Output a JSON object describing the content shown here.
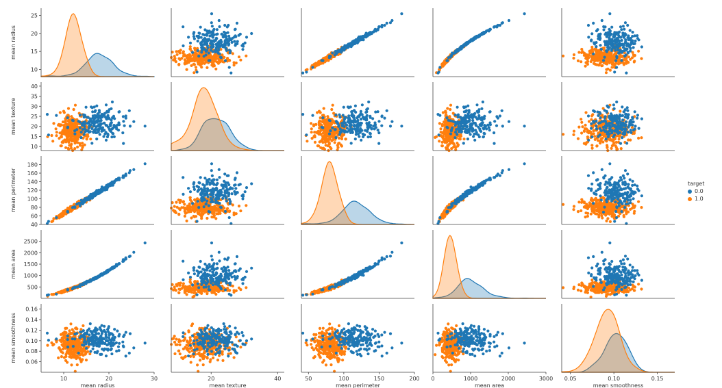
{
  "chart_data": {
    "type": "scatter",
    "kind": "pairplot",
    "hue_title": "target",
    "hue_levels": [
      "0.0",
      "1.0"
    ],
    "colors": {
      "0.0": "#1f77b4",
      "1.0": "#ff7f0e"
    },
    "variables": [
      {
        "name": "mean radius",
        "ylabel": "mean radius",
        "xlabel": "mean radius",
        "range": [
          5,
          30
        ],
        "ticks": [
          10,
          20,
          30
        ],
        "tick_labels": [
          "10",
          "20",
          "30"
        ],
        "mu": [
          17.5,
          12.1
        ],
        "sd": [
          3.2,
          1.8
        ]
      },
      {
        "name": "mean texture",
        "ylabel": "mean texture",
        "xlabel": "mean texture",
        "range": [
          8,
          42
        ],
        "ticks": [
          20,
          40
        ],
        "tick_labels": [
          "20",
          "40"
        ],
        "ytick_labels": [
          "10",
          "15",
          "20",
          "25",
          "30",
          "35",
          "40"
        ],
        "ytick_vals": [
          10,
          15,
          20,
          25,
          30,
          35,
          40
        ],
        "mu": [
          21.6,
          17.9
        ],
        "sd": [
          3.8,
          4.0
        ]
      },
      {
        "name": "mean perimeter",
        "ylabel": "mean perimeter",
        "xlabel": "mean perimeter",
        "range": [
          40,
          200
        ],
        "ticks": [
          50,
          100,
          150,
          200
        ],
        "tick_labels": [
          "50",
          "100",
          "150",
          "200"
        ],
        "ytick_labels": [
          "40",
          "60",
          "80",
          "100",
          "120",
          "140",
          "160",
          "180"
        ],
        "ytick_vals": [
          40,
          60,
          80,
          100,
          120,
          140,
          160,
          180
        ],
        "mu": [
          115,
          78
        ],
        "sd": [
          21.8,
          11.8
        ]
      },
      {
        "name": "mean area",
        "ylabel": "mean area",
        "xlabel": "mean area",
        "range": [
          0,
          3000
        ],
        "ticks": [
          0,
          1000,
          2000,
          3000
        ],
        "tick_labels": [
          "0",
          "1000",
          "2000",
          "3000"
        ],
        "ytick_labels": [
          "500",
          "1000",
          "1500",
          "2000",
          "2500"
        ],
        "ytick_vals": [
          500,
          1000,
          1500,
          2000,
          2500
        ],
        "mu": [
          978,
          463
        ],
        "sd": [
          368,
          134
        ]
      },
      {
        "name": "mean smoothness",
        "ylabel": "mean smoothness",
        "xlabel": "mean smoothness",
        "range": [
          0.04,
          0.17
        ],
        "ticks": [
          0.05,
          0.1,
          0.15
        ],
        "tick_labels": [
          "0.05",
          "0.10",
          "0.15"
        ],
        "ytick_labels": [
          "0.06",
          "0.08",
          "0.10",
          "0.12",
          "0.14",
          "0.16"
        ],
        "ytick_vals": [
          0.06,
          0.08,
          0.1,
          0.12,
          0.14,
          0.16
        ],
        "mu": [
          0.103,
          0.092
        ],
        "sd": [
          0.0126,
          0.0134
        ]
      }
    ],
    "ytick_labels_row0": [
      "10",
      "15",
      "20",
      "25"
    ],
    "ytick_vals_row0": [
      10,
      15,
      20,
      25
    ]
  }
}
